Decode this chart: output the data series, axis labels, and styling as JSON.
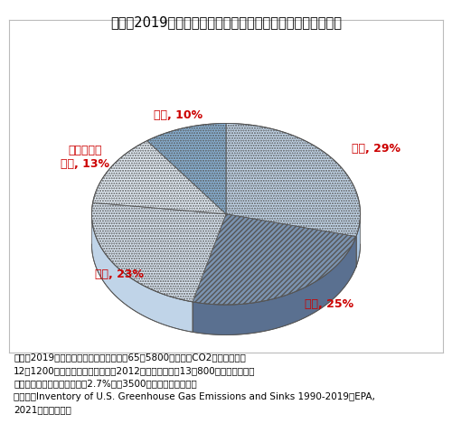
{
  "title": "（表）2019年の米国における温室効果ガスの産業別排出割合",
  "title_fontsize": 10.5,
  "segments": [
    {
      "label": "運輸, 29%",
      "value": 29,
      "color": "#c5d9ed",
      "hatch": "......",
      "side_color": "#a8c4e0"
    },
    {
      "label": "電力, 25%",
      "value": 25,
      "color": "#7b93b0",
      "hatch": "//////",
      "side_color": "#5a7090"
    },
    {
      "label": "工業, 23%",
      "value": 23,
      "color": "#dce8f4",
      "hatch": "......",
      "side_color": "#c0d4e8"
    },
    {
      "label": "商業・家庭\n部門, 13%",
      "value": 13,
      "color": "#e8f2fb",
      "hatch": "......",
      "side_color": "#ccdcee"
    },
    {
      "label": "農業, 10%",
      "value": 10,
      "color": "#8ab4d8",
      "hatch": "......",
      "side_color": "#6a9abf"
    }
  ],
  "label_color": "#cc0000",
  "label_fontsize": 9,
  "note_text": "（注）2019年における米国の総排出量は65億5800万トン（CO2換算、日本は\n12億1200万トン）。なお、日本の2012年度の総排出量13億800万トンのうち、\n農林水産業の占める割合は約2.7%（約3500万トン、農水省）。\n（資料）Inventory of U.S. Greenhouse Gas Emissions and Sinks 1990-2019（EPA,\n2021）より作成。",
  "note_fontsize": 7.5,
  "background_color": "#ffffff",
  "figsize": [
    5.0,
    4.79
  ],
  "dpi": 100
}
